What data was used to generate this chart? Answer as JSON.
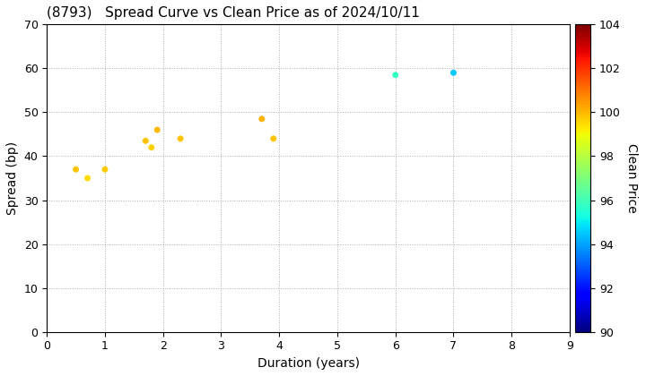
{
  "title": "(8793)   Spread Curve vs Clean Price as of 2024/10/11",
  "xlabel": "Duration (years)",
  "ylabel": "Spread (bp)",
  "colorbar_label": "Clean Price",
  "xlim": [
    0,
    9
  ],
  "ylim": [
    0,
    70
  ],
  "xticks": [
    0,
    1,
    2,
    3,
    4,
    5,
    6,
    7,
    8,
    9
  ],
  "yticks": [
    0,
    10,
    20,
    30,
    40,
    50,
    60,
    70
  ],
  "cbar_min": 90,
  "cbar_max": 104,
  "cbar_ticks": [
    90,
    92,
    94,
    96,
    98,
    100,
    102,
    104
  ],
  "points": [
    {
      "duration": 0.5,
      "spread": 37.0,
      "price": 99.8
    },
    {
      "duration": 0.7,
      "spread": 35.0,
      "price": 99.5
    },
    {
      "duration": 1.0,
      "spread": 37.0,
      "price": 99.7
    },
    {
      "duration": 1.7,
      "spread": 43.5,
      "price": 99.8
    },
    {
      "duration": 1.8,
      "spread": 42.0,
      "price": 99.6
    },
    {
      "duration": 1.9,
      "spread": 46.0,
      "price": 100.0
    },
    {
      "duration": 2.3,
      "spread": 44.0,
      "price": 99.8
    },
    {
      "duration": 3.7,
      "spread": 48.5,
      "price": 100.1
    },
    {
      "duration": 3.9,
      "spread": 44.0,
      "price": 99.8
    },
    {
      "duration": 6.0,
      "spread": 58.5,
      "price": 95.8
    },
    {
      "duration": 7.0,
      "spread": 59.0,
      "price": 94.5
    }
  ],
  "marker_size": 25,
  "title_fontsize": 11,
  "label_fontsize": 10,
  "tick_fontsize": 9,
  "background_color": "#ffffff",
  "grid_color": "#999999",
  "figwidth": 7.2,
  "figheight": 4.2,
  "dpi": 100
}
